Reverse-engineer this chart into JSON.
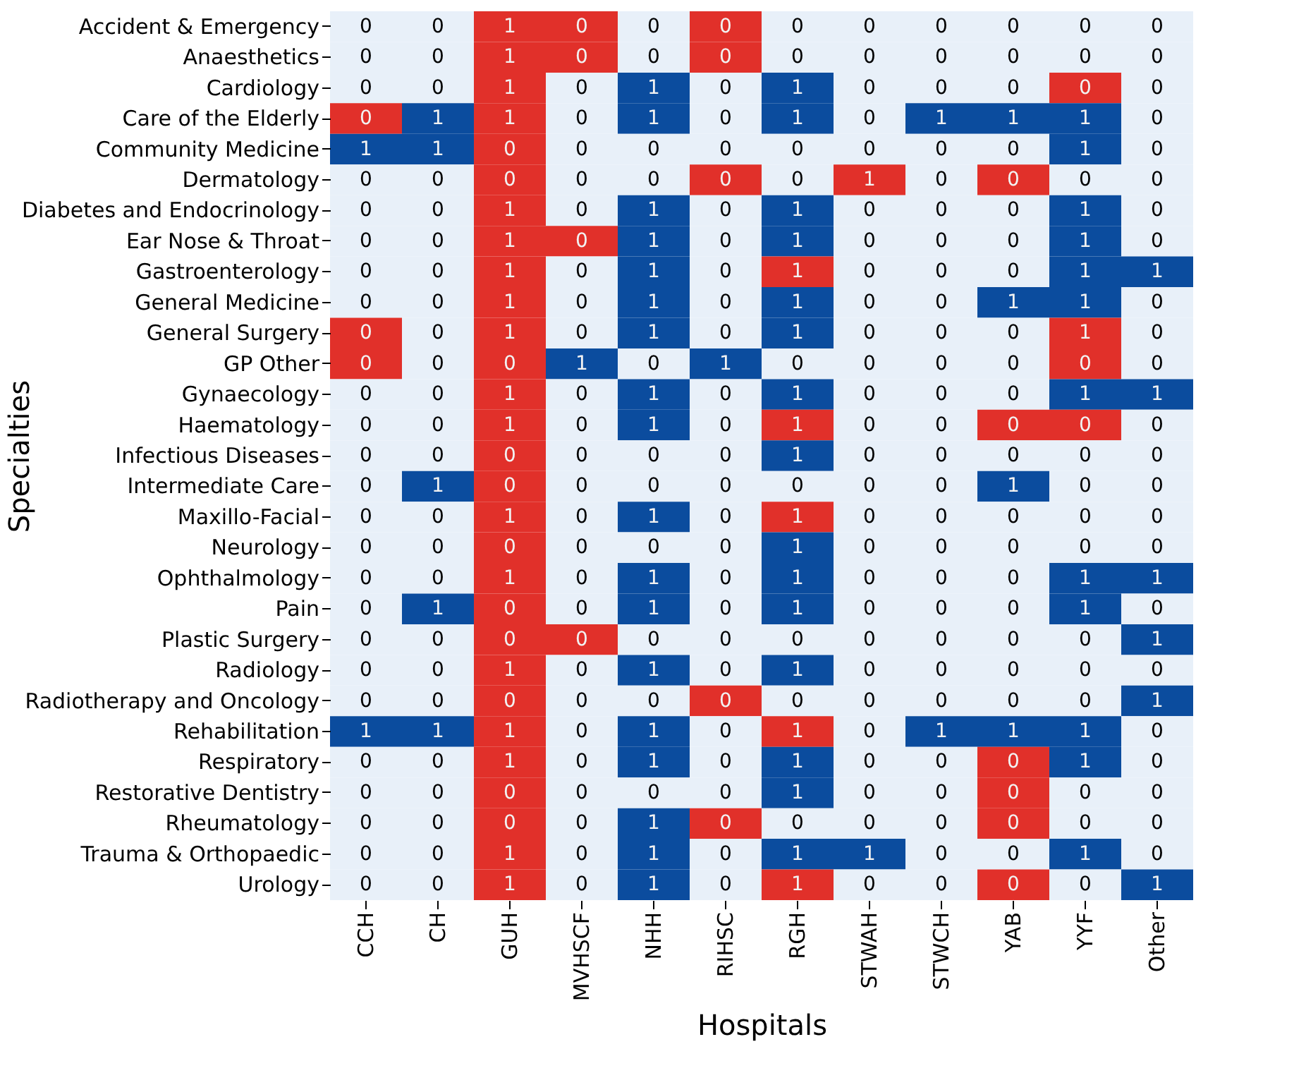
{
  "chart_data": {
    "type": "heatmap",
    "data_labels": true,
    "xlabel": "Hospitals",
    "ylabel": "Specialties",
    "categories": [
      "CCH",
      "CH",
      "GUH",
      "MVHSCF",
      "NHH",
      "RIHSC",
      "RGH",
      "STWAH",
      "STWCH",
      "YAB",
      "YYF",
      "Other"
    ],
    "y_categories": [
      "Accident & Emergency",
      "Anaesthetics",
      "Cardiology",
      "Care of the Elderly",
      "Community Medicine",
      "Dermatology",
      "Diabetes and Endocrinology",
      "Ear Nose & Throat",
      "Gastroenterology",
      "General Medicine",
      "General Surgery",
      "GP Other",
      "Gynaecology",
      "Haematology",
      "Infectious Diseases",
      "Intermediate Care",
      "Maxillo-Facial",
      "Neurology",
      "Ophthalmology",
      "Pain",
      "Plastic Surgery",
      "Radiology",
      "Radiotherapy and Oncology",
      "Rehabilitation",
      "Respiratory",
      "Restorative Dentistry",
      "Rheumatology",
      "Trauma & Orthopaedic",
      "Urology"
    ],
    "cells": [
      [
        0,
        0,
        1,
        0,
        0,
        0,
        0,
        0,
        0,
        0,
        0,
        0
      ],
      [
        0,
        0,
        1,
        0,
        0,
        0,
        0,
        0,
        0,
        0,
        0,
        0
      ],
      [
        0,
        0,
        1,
        0,
        1,
        0,
        1,
        0,
        0,
        0,
        0,
        0
      ],
      [
        0,
        1,
        1,
        0,
        1,
        0,
        1,
        0,
        1,
        1,
        1,
        0
      ],
      [
        1,
        1,
        0,
        0,
        0,
        0,
        0,
        0,
        0,
        0,
        1,
        0
      ],
      [
        0,
        0,
        0,
        0,
        0,
        0,
        0,
        1,
        0,
        0,
        0,
        0
      ],
      [
        0,
        0,
        1,
        0,
        1,
        0,
        1,
        0,
        0,
        0,
        1,
        0
      ],
      [
        0,
        0,
        1,
        0,
        1,
        0,
        1,
        0,
        0,
        0,
        1,
        0
      ],
      [
        0,
        0,
        1,
        0,
        1,
        0,
        1,
        0,
        0,
        0,
        1,
        1
      ],
      [
        0,
        0,
        1,
        0,
        1,
        0,
        1,
        0,
        0,
        1,
        1,
        0
      ],
      [
        0,
        0,
        1,
        0,
        1,
        0,
        1,
        0,
        0,
        0,
        1,
        0
      ],
      [
        0,
        0,
        0,
        1,
        0,
        1,
        0,
        0,
        0,
        0,
        0,
        0
      ],
      [
        0,
        0,
        1,
        0,
        1,
        0,
        1,
        0,
        0,
        0,
        1,
        1
      ],
      [
        0,
        0,
        1,
        0,
        1,
        0,
        1,
        0,
        0,
        0,
        0,
        0
      ],
      [
        0,
        0,
        0,
        0,
        0,
        0,
        1,
        0,
        0,
        0,
        0,
        0
      ],
      [
        0,
        1,
        0,
        0,
        0,
        0,
        0,
        0,
        0,
        1,
        0,
        0
      ],
      [
        0,
        0,
        1,
        0,
        1,
        0,
        1,
        0,
        0,
        0,
        0,
        0
      ],
      [
        0,
        0,
        0,
        0,
        0,
        0,
        1,
        0,
        0,
        0,
        0,
        0
      ],
      [
        0,
        0,
        1,
        0,
        1,
        0,
        1,
        0,
        0,
        0,
        1,
        1
      ],
      [
        0,
        1,
        0,
        0,
        1,
        0,
        1,
        0,
        0,
        0,
        1,
        0
      ],
      [
        0,
        0,
        0,
        0,
        0,
        0,
        0,
        0,
        0,
        0,
        0,
        1
      ],
      [
        0,
        0,
        1,
        0,
        1,
        0,
        1,
        0,
        0,
        0,
        0,
        0
      ],
      [
        0,
        0,
        0,
        0,
        0,
        0,
        0,
        0,
        0,
        0,
        0,
        1
      ],
      [
        1,
        1,
        1,
        0,
        1,
        0,
        1,
        0,
        1,
        1,
        1,
        0
      ],
      [
        0,
        0,
        1,
        0,
        1,
        0,
        1,
        0,
        0,
        0,
        1,
        0
      ],
      [
        0,
        0,
        0,
        0,
        0,
        0,
        1,
        0,
        0,
        0,
        0,
        0
      ],
      [
        0,
        0,
        0,
        0,
        1,
        0,
        0,
        0,
        0,
        0,
        0,
        0
      ],
      [
        0,
        0,
        1,
        0,
        1,
        0,
        1,
        1,
        0,
        0,
        1,
        0
      ],
      [
        0,
        0,
        1,
        0,
        1,
        0,
        1,
        0,
        0,
        0,
        0,
        1
      ]
    ],
    "colors": [
      [
        "#e8f0f9",
        "#e8f0f9",
        "#e1302a",
        "#e1302a",
        "#e8f0f9",
        "#e1302a",
        "#e8f0f9",
        "#e8f0f9",
        "#e8f0f9",
        "#e8f0f9",
        "#e8f0f9",
        "#e8f0f9"
      ],
      [
        "#e8f0f9",
        "#e8f0f9",
        "#e1302a",
        "#e1302a",
        "#e8f0f9",
        "#e1302a",
        "#e8f0f9",
        "#e8f0f9",
        "#e8f0f9",
        "#e8f0f9",
        "#e8f0f9",
        "#e8f0f9"
      ],
      [
        "#e8f0f9",
        "#e8f0f9",
        "#e1302a",
        "#e8f0f9",
        "#0b4c9e",
        "#e8f0f9",
        "#0b4c9e",
        "#e8f0f9",
        "#e8f0f9",
        "#e8f0f9",
        "#e1302a",
        "#e8f0f9"
      ],
      [
        "#e1302a",
        "#0b4c9e",
        "#e1302a",
        "#e8f0f9",
        "#0b4c9e",
        "#e8f0f9",
        "#0b4c9e",
        "#e8f0f9",
        "#0b4c9e",
        "#0b4c9e",
        "#0b4c9e",
        "#e8f0f9"
      ],
      [
        "#0b4c9e",
        "#0b4c9e",
        "#e1302a",
        "#e8f0f9",
        "#e8f0f9",
        "#e8f0f9",
        "#e8f0f9",
        "#e8f0f9",
        "#e8f0f9",
        "#e8f0f9",
        "#0b4c9e",
        "#e8f0f9"
      ],
      [
        "#e8f0f9",
        "#e8f0f9",
        "#e1302a",
        "#e8f0f9",
        "#e8f0f9",
        "#e1302a",
        "#e8f0f9",
        "#e1302a",
        "#e8f0f9",
        "#e1302a",
        "#e8f0f9",
        "#e8f0f9"
      ],
      [
        "#e8f0f9",
        "#e8f0f9",
        "#e1302a",
        "#e8f0f9",
        "#0b4c9e",
        "#e8f0f9",
        "#0b4c9e",
        "#e8f0f9",
        "#e8f0f9",
        "#e8f0f9",
        "#0b4c9e",
        "#e8f0f9"
      ],
      [
        "#e8f0f9",
        "#e8f0f9",
        "#e1302a",
        "#e1302a",
        "#0b4c9e",
        "#e8f0f9",
        "#0b4c9e",
        "#e8f0f9",
        "#e8f0f9",
        "#e8f0f9",
        "#0b4c9e",
        "#e8f0f9"
      ],
      [
        "#e8f0f9",
        "#e8f0f9",
        "#e1302a",
        "#e8f0f9",
        "#0b4c9e",
        "#e8f0f9",
        "#e1302a",
        "#e8f0f9",
        "#e8f0f9",
        "#e8f0f9",
        "#0b4c9e",
        "#0b4c9e"
      ],
      [
        "#e8f0f9",
        "#e8f0f9",
        "#e1302a",
        "#e8f0f9",
        "#0b4c9e",
        "#e8f0f9",
        "#0b4c9e",
        "#e8f0f9",
        "#e8f0f9",
        "#0b4c9e",
        "#0b4c9e",
        "#e8f0f9"
      ],
      [
        "#e1302a",
        "#e8f0f9",
        "#e1302a",
        "#e8f0f9",
        "#0b4c9e",
        "#e8f0f9",
        "#0b4c9e",
        "#e8f0f9",
        "#e8f0f9",
        "#e8f0f9",
        "#e1302a",
        "#e8f0f9"
      ],
      [
        "#e1302a",
        "#e8f0f9",
        "#e1302a",
        "#0b4c9e",
        "#e8f0f9",
        "#0b4c9e",
        "#e8f0f9",
        "#e8f0f9",
        "#e8f0f9",
        "#e8f0f9",
        "#e1302a",
        "#e8f0f9"
      ],
      [
        "#e8f0f9",
        "#e8f0f9",
        "#e1302a",
        "#e8f0f9",
        "#0b4c9e",
        "#e8f0f9",
        "#0b4c9e",
        "#e8f0f9",
        "#e8f0f9",
        "#e8f0f9",
        "#0b4c9e",
        "#0b4c9e"
      ],
      [
        "#e8f0f9",
        "#e8f0f9",
        "#e1302a",
        "#e8f0f9",
        "#0b4c9e",
        "#e8f0f9",
        "#e1302a",
        "#e8f0f9",
        "#e8f0f9",
        "#e1302a",
        "#e1302a",
        "#e8f0f9"
      ],
      [
        "#e8f0f9",
        "#e8f0f9",
        "#e1302a",
        "#e8f0f9",
        "#e8f0f9",
        "#e8f0f9",
        "#0b4c9e",
        "#e8f0f9",
        "#e8f0f9",
        "#e8f0f9",
        "#e8f0f9",
        "#e8f0f9"
      ],
      [
        "#e8f0f9",
        "#0b4c9e",
        "#e1302a",
        "#e8f0f9",
        "#e8f0f9",
        "#e8f0f9",
        "#e8f0f9",
        "#e8f0f9",
        "#e8f0f9",
        "#0b4c9e",
        "#e8f0f9",
        "#e8f0f9"
      ],
      [
        "#e8f0f9",
        "#e8f0f9",
        "#e1302a",
        "#e8f0f9",
        "#0b4c9e",
        "#e8f0f9",
        "#e1302a",
        "#e8f0f9",
        "#e8f0f9",
        "#e8f0f9",
        "#e8f0f9",
        "#e8f0f9"
      ],
      [
        "#e8f0f9",
        "#e8f0f9",
        "#e1302a",
        "#e8f0f9",
        "#e8f0f9",
        "#e8f0f9",
        "#0b4c9e",
        "#e8f0f9",
        "#e8f0f9",
        "#e8f0f9",
        "#e8f0f9",
        "#e8f0f9"
      ],
      [
        "#e8f0f9",
        "#e8f0f9",
        "#e1302a",
        "#e8f0f9",
        "#0b4c9e",
        "#e8f0f9",
        "#0b4c9e",
        "#e8f0f9",
        "#e8f0f9",
        "#e8f0f9",
        "#0b4c9e",
        "#0b4c9e"
      ],
      [
        "#e8f0f9",
        "#0b4c9e",
        "#e1302a",
        "#e8f0f9",
        "#0b4c9e",
        "#e8f0f9",
        "#0b4c9e",
        "#e8f0f9",
        "#e8f0f9",
        "#e8f0f9",
        "#0b4c9e",
        "#e8f0f9"
      ],
      [
        "#e8f0f9",
        "#e8f0f9",
        "#e1302a",
        "#e1302a",
        "#e8f0f9",
        "#e8f0f9",
        "#e8f0f9",
        "#e8f0f9",
        "#e8f0f9",
        "#e8f0f9",
        "#e8f0f9",
        "#0b4c9e"
      ],
      [
        "#e8f0f9",
        "#e8f0f9",
        "#e1302a",
        "#e8f0f9",
        "#0b4c9e",
        "#e8f0f9",
        "#0b4c9e",
        "#e8f0f9",
        "#e8f0f9",
        "#e8f0f9",
        "#e8f0f9",
        "#e8f0f9"
      ],
      [
        "#e8f0f9",
        "#e8f0f9",
        "#e1302a",
        "#e8f0f9",
        "#e8f0f9",
        "#e1302a",
        "#e8f0f9",
        "#e8f0f9",
        "#e8f0f9",
        "#e8f0f9",
        "#e8f0f9",
        "#0b4c9e"
      ],
      [
        "#0b4c9e",
        "#0b4c9e",
        "#e1302a",
        "#e8f0f9",
        "#0b4c9e",
        "#e8f0f9",
        "#e1302a",
        "#e8f0f9",
        "#0b4c9e",
        "#0b4c9e",
        "#0b4c9e",
        "#e8f0f9"
      ],
      [
        "#e8f0f9",
        "#e8f0f9",
        "#e1302a",
        "#e8f0f9",
        "#0b4c9e",
        "#e8f0f9",
        "#0b4c9e",
        "#e8f0f9",
        "#e8f0f9",
        "#e1302a",
        "#0b4c9e",
        "#e8f0f9"
      ],
      [
        "#e8f0f9",
        "#e8f0f9",
        "#e1302a",
        "#e8f0f9",
        "#e8f0f9",
        "#e8f0f9",
        "#0b4c9e",
        "#e8f0f9",
        "#e8f0f9",
        "#e1302a",
        "#e8f0f9",
        "#e8f0f9"
      ],
      [
        "#e8f0f9",
        "#e8f0f9",
        "#e1302a",
        "#e8f0f9",
        "#0b4c9e",
        "#e1302a",
        "#e8f0f9",
        "#e8f0f9",
        "#e8f0f9",
        "#e1302a",
        "#e8f0f9",
        "#e8f0f9"
      ],
      [
        "#e8f0f9",
        "#e8f0f9",
        "#e1302a",
        "#e8f0f9",
        "#0b4c9e",
        "#e8f0f9",
        "#0b4c9e",
        "#0b4c9e",
        "#e8f0f9",
        "#e8f0f9",
        "#0b4c9e",
        "#e8f0f9"
      ],
      [
        "#e8f0f9",
        "#e8f0f9",
        "#e1302a",
        "#e8f0f9",
        "#0b4c9e",
        "#e8f0f9",
        "#e1302a",
        "#e8f0f9",
        "#e8f0f9",
        "#e1302a",
        "#e8f0f9",
        "#0b4c9e"
      ]
    ]
  }
}
